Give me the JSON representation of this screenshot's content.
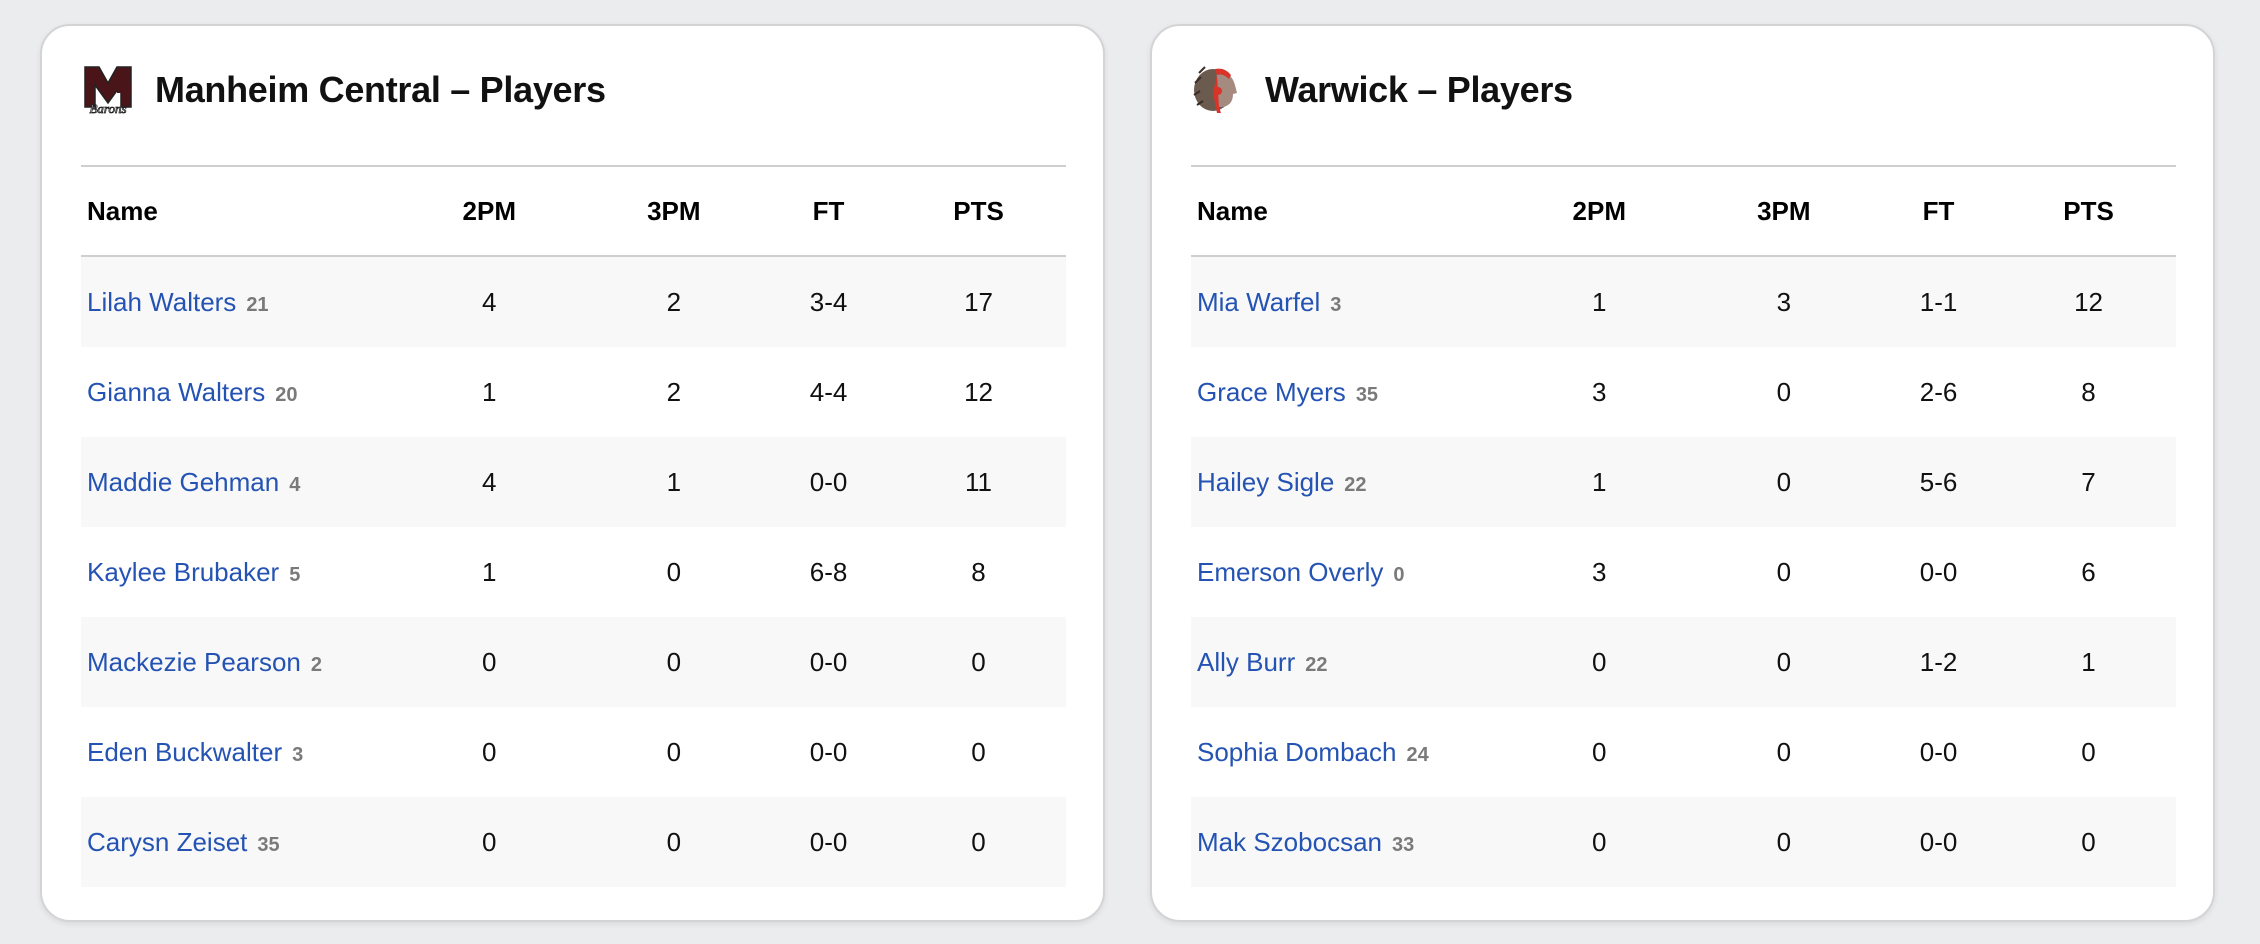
{
  "columns": [
    "Name",
    "2PM",
    "3PM",
    "FT",
    "PTS"
  ],
  "teams": [
    {
      "title": "Manheim Central – Players",
      "logo": "manheim-barons-logo",
      "logo_text": "Barons",
      "players": [
        {
          "name": "Lilah Walters",
          "number": "21",
          "2pm": "4",
          "3pm": "2",
          "ft": "3-4",
          "pts": "17"
        },
        {
          "name": "Gianna Walters",
          "number": "20",
          "2pm": "1",
          "3pm": "2",
          "ft": "4-4",
          "pts": "12"
        },
        {
          "name": "Maddie Gehman",
          "number": "4",
          "2pm": "4",
          "3pm": "1",
          "ft": "0-0",
          "pts": "11"
        },
        {
          "name": "Kaylee Brubaker",
          "number": "5",
          "2pm": "1",
          "3pm": "0",
          "ft": "6-8",
          "pts": "8"
        },
        {
          "name": "Mackezie Pearson",
          "number": "2",
          "2pm": "0",
          "3pm": "0",
          "ft": "0-0",
          "pts": "0"
        },
        {
          "name": "Eden Buckwalter",
          "number": "3",
          "2pm": "0",
          "3pm": "0",
          "ft": "0-0",
          "pts": "0"
        },
        {
          "name": "Carysn Zeiset",
          "number": "35",
          "2pm": "0",
          "3pm": "0",
          "ft": "0-0",
          "pts": "0"
        }
      ]
    },
    {
      "title": "Warwick – Players",
      "logo": "warwick-warriors-logo",
      "players": [
        {
          "name": "Mia Warfel",
          "number": "3",
          "2pm": "1",
          "3pm": "3",
          "ft": "1-1",
          "pts": "12"
        },
        {
          "name": "Grace Myers",
          "number": "35",
          "2pm": "3",
          "3pm": "0",
          "ft": "2-6",
          "pts": "8"
        },
        {
          "name": "Hailey Sigle",
          "number": "22",
          "2pm": "1",
          "3pm": "0",
          "ft": "5-6",
          "pts": "7"
        },
        {
          "name": "Emerson Overly",
          "number": "0",
          "2pm": "3",
          "3pm": "0",
          "ft": "0-0",
          "pts": "6"
        },
        {
          "name": "Ally Burr",
          "number": "22",
          "2pm": "0",
          "3pm": "0",
          "ft": "1-2",
          "pts": "1"
        },
        {
          "name": "Sophia Dombach",
          "number": "24",
          "2pm": "0",
          "3pm": "0",
          "ft": "0-0",
          "pts": "0"
        },
        {
          "name": "Mak Szobocsan",
          "number": "33",
          "2pm": "0",
          "3pm": "0",
          "ft": "0-0",
          "pts": "0"
        }
      ]
    }
  ],
  "colors": {
    "link": "#2453b3",
    "jersey": "#7a7a7a",
    "stripe": "#f8f8f8",
    "background": "#ebecee",
    "manheim_maroon": "#4a1518",
    "warwick_red": "#d8342a"
  }
}
